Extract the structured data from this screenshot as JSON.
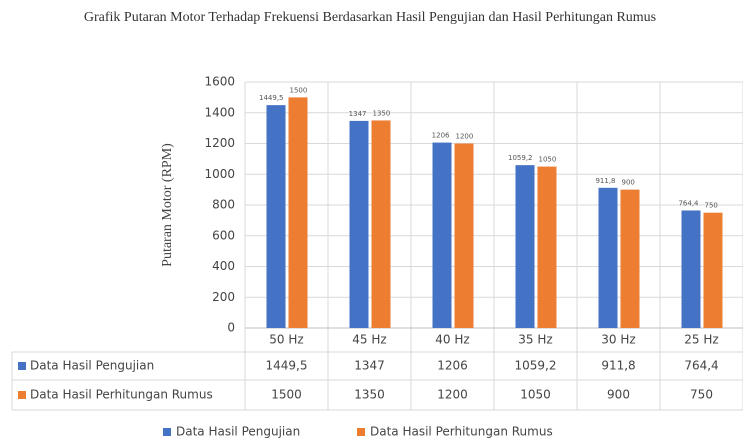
{
  "chart_data": {
    "type": "bar",
    "title": "Grafik  Putaran Motor Terhadap  Frekuensi Berdasarkan  Hasil Pengujian dan Hasil  Perhitungan Rumus",
    "y_label": "Putaran Motor (RPM)",
    "categories": [
      "50 Hz",
      "45 Hz",
      "40 Hz",
      "35 Hz",
      "30 Hz",
      "25 Hz"
    ],
    "series": [
      {
        "name": "Data Hasil Pengujian",
        "color": "#4472c4",
        "values": [
          1449.5,
          1347,
          1206,
          1059.2,
          911.8,
          764.4
        ],
        "value_labels": [
          "1449,5",
          "1347",
          "1206",
          "1059,2",
          "911,8",
          "764,4"
        ]
      },
      {
        "name": "Data Hasil Perhitungan Rumus",
        "color": "#ed7d31",
        "values": [
          1500,
          1350,
          1200,
          1050,
          900,
          750
        ]
      }
    ],
    "ylim": [
      0,
      1600
    ],
    "yticks": [
      0,
      200,
      400,
      600,
      800,
      1000,
      1200,
      1400,
      1600
    ],
    "grid": true,
    "legend": "bottom"
  }
}
